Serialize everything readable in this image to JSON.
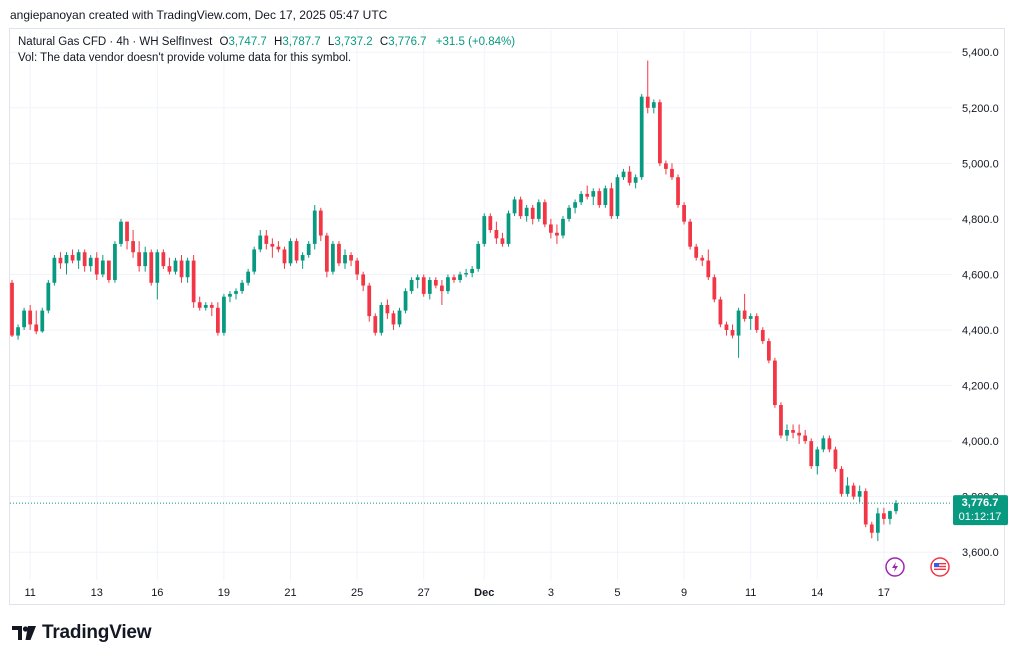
{
  "attribution": "angiepanoyan created with TradingView.com, Dec 17, 2025 05:47 UTC",
  "symbol": {
    "name": "Natural Gas CFD · 4h · WH SelfInvest",
    "open_label": "O",
    "open": "3,747.7",
    "high_label": "H",
    "high": "3,787.7",
    "low_label": "L",
    "low": "3,737.2",
    "close_label": "C",
    "close": "3,776.7",
    "change": "+31.5 (+0.84%)",
    "volume_note": "Vol: The data vendor doesn't provide volume data for this symbol."
  },
  "price_badge": {
    "price": "3,776.7",
    "countdown": "01:12:17"
  },
  "brand": {
    "logo_mark": "17",
    "name": "TradingView"
  },
  "colors": {
    "up": "#089981",
    "down": "#f23645",
    "grid": "#f0f3fa",
    "text": "#131722",
    "event_purple": "#9c27b0",
    "flag_red": "#f23645"
  },
  "chart_data": {
    "type": "candlestick",
    "title": "Natural Gas CFD · 4h · WH SelfInvest",
    "ylim": [
      3500,
      5480
    ],
    "y_ticks": [
      3600,
      3800,
      4000,
      4200,
      4400,
      4600,
      4800,
      5000,
      5200,
      5400
    ],
    "y_tick_labels": [
      "3,600.0",
      "3,800.0",
      "4,000.0",
      "4,200.0",
      "4,400.0",
      "4,600.0",
      "4,800.0",
      "5,000.0",
      "5,200.0",
      "5,400.0"
    ],
    "x_tick_labels": [
      "11",
      "13",
      "16",
      "19",
      "21",
      "25",
      "27",
      "Dec",
      "3",
      "5",
      "9",
      "11",
      "14",
      "17"
    ],
    "x_tick_index": [
      3,
      14,
      24,
      35,
      46,
      57,
      68,
      78,
      89,
      100,
      111,
      122,
      133,
      144
    ],
    "current_price": 3776.7,
    "candles": [
      [
        4570,
        4580,
        4375,
        4380
      ],
      [
        4380,
        4420,
        4365,
        4410
      ],
      [
        4410,
        4480,
        4400,
        4470
      ],
      [
        4470,
        4490,
        4400,
        4420
      ],
      [
        4420,
        4470,
        4385,
        4395
      ],
      [
        4395,
        4480,
        4390,
        4470
      ],
      [
        4470,
        4580,
        4460,
        4570
      ],
      [
        4570,
        4670,
        4560,
        4660
      ],
      [
        4660,
        4680,
        4620,
        4640
      ],
      [
        4640,
        4680,
        4600,
        4670
      ],
      [
        4670,
        4690,
        4640,
        4650
      ],
      [
        4650,
        4690,
        4620,
        4680
      ],
      [
        4680,
        4690,
        4610,
        4630
      ],
      [
        4630,
        4670,
        4610,
        4660
      ],
      [
        4660,
        4680,
        4580,
        4600
      ],
      [
        4600,
        4670,
        4590,
        4650
      ],
      [
        4650,
        4650,
        4570,
        4580
      ],
      [
        4580,
        4720,
        4570,
        4710
      ],
      [
        4710,
        4800,
        4700,
        4790
      ],
      [
        4790,
        4790,
        4690,
        4720
      ],
      [
        4720,
        4760,
        4660,
        4680
      ],
      [
        4680,
        4720,
        4610,
        4630
      ],
      [
        4630,
        4700,
        4610,
        4680
      ],
      [
        4680,
        4690,
        4560,
        4570
      ],
      [
        4570,
        4690,
        4510,
        4680
      ],
      [
        4680,
        4690,
        4620,
        4630
      ],
      [
        4630,
        4660,
        4600,
        4610
      ],
      [
        4610,
        4660,
        4600,
        4650
      ],
      [
        4650,
        4670,
        4570,
        4590
      ],
      [
        4590,
        4660,
        4570,
        4650
      ],
      [
        4650,
        4670,
        4480,
        4500
      ],
      [
        4500,
        4520,
        4470,
        4480
      ],
      [
        4480,
        4500,
        4470,
        4490
      ],
      [
        4490,
        4500,
        4450,
        4480
      ],
      [
        4480,
        4500,
        4380,
        4390
      ],
      [
        4390,
        4530,
        4380,
        4520
      ],
      [
        4520,
        4540,
        4500,
        4530
      ],
      [
        4530,
        4550,
        4510,
        4540
      ],
      [
        4540,
        4580,
        4530,
        4570
      ],
      [
        4570,
        4620,
        4560,
        4610
      ],
      [
        4610,
        4700,
        4600,
        4690
      ],
      [
        4690,
        4760,
        4680,
        4740
      ],
      [
        4740,
        4760,
        4690,
        4710
      ],
      [
        4710,
        4730,
        4660,
        4700
      ],
      [
        4700,
        4720,
        4680,
        4690
      ],
      [
        4690,
        4700,
        4620,
        4640
      ],
      [
        4640,
        4730,
        4630,
        4720
      ],
      [
        4720,
        4730,
        4640,
        4650
      ],
      [
        4650,
        4680,
        4620,
        4670
      ],
      [
        4670,
        4720,
        4660,
        4710
      ],
      [
        4710,
        4850,
        4690,
        4830
      ],
      [
        4830,
        4840,
        4720,
        4740
      ],
      [
        4740,
        4750,
        4590,
        4610
      ],
      [
        4610,
        4720,
        4600,
        4710
      ],
      [
        4710,
        4720,
        4630,
        4640
      ],
      [
        4640,
        4690,
        4620,
        4670
      ],
      [
        4670,
        4680,
        4630,
        4650
      ],
      [
        4650,
        4660,
        4580,
        4600
      ],
      [
        4600,
        4610,
        4540,
        4560
      ],
      [
        4560,
        4570,
        4430,
        4450
      ],
      [
        4450,
        4460,
        4380,
        4390
      ],
      [
        4390,
        4500,
        4380,
        4490
      ],
      [
        4490,
        4510,
        4440,
        4460
      ],
      [
        4460,
        4470,
        4400,
        4420
      ],
      [
        4420,
        4480,
        4410,
        4470
      ],
      [
        4470,
        4550,
        4460,
        4540
      ],
      [
        4540,
        4590,
        4530,
        4580
      ],
      [
        4580,
        4600,
        4550,
        4590
      ],
      [
        4590,
        4600,
        4520,
        4530
      ],
      [
        4530,
        4590,
        4510,
        4580
      ],
      [
        4580,
        4590,
        4550,
        4560
      ],
      [
        4560,
        4580,
        4490,
        4540
      ],
      [
        4540,
        4600,
        4530,
        4590
      ],
      [
        4590,
        4600,
        4570,
        4580
      ],
      [
        4580,
        4610,
        4570,
        4600
      ],
      [
        4600,
        4620,
        4590,
        4605
      ],
      [
        4605,
        4630,
        4590,
        4620
      ],
      [
        4620,
        4720,
        4610,
        4710
      ],
      [
        4710,
        4820,
        4700,
        4810
      ],
      [
        4810,
        4820,
        4750,
        4760
      ],
      [
        4760,
        4790,
        4710,
        4730
      ],
      [
        4730,
        4750,
        4700,
        4710
      ],
      [
        4710,
        4830,
        4700,
        4820
      ],
      [
        4820,
        4880,
        4810,
        4870
      ],
      [
        4870,
        4880,
        4800,
        4810
      ],
      [
        4810,
        4850,
        4790,
        4840
      ],
      [
        4840,
        4850,
        4780,
        4800
      ],
      [
        4800,
        4870,
        4790,
        4860
      ],
      [
        4860,
        4870,
        4770,
        4780
      ],
      [
        4780,
        4800,
        4730,
        4750
      ],
      [
        4750,
        4780,
        4710,
        4740
      ],
      [
        4740,
        4810,
        4730,
        4800
      ],
      [
        4800,
        4850,
        4790,
        4840
      ],
      [
        4840,
        4870,
        4820,
        4860
      ],
      [
        4860,
        4900,
        4850,
        4890
      ],
      [
        4890,
        4920,
        4870,
        4880
      ],
      [
        4880,
        4910,
        4850,
        4900
      ],
      [
        4900,
        4910,
        4840,
        4850
      ],
      [
        4850,
        4920,
        4840,
        4910
      ],
      [
        4910,
        4930,
        4800,
        4810
      ],
      [
        4810,
        4960,
        4800,
        4950
      ],
      [
        4950,
        4980,
        4940,
        4970
      ],
      [
        4970,
        4990,
        4920,
        4930
      ],
      [
        4930,
        4960,
        4910,
        4950
      ],
      [
        4950,
        5250,
        4940,
        5240
      ],
      [
        5240,
        5370,
        5180,
        5200
      ],
      [
        5200,
        5230,
        5180,
        5220
      ],
      [
        5220,
        5230,
        4990,
        5000
      ],
      [
        5000,
        5010,
        4960,
        4980
      ],
      [
        4980,
        5000,
        4940,
        4950
      ],
      [
        4950,
        4960,
        4840,
        4850
      ],
      [
        4850,
        4860,
        4780,
        4790
      ],
      [
        4790,
        4800,
        4690,
        4700
      ],
      [
        4700,
        4710,
        4650,
        4660
      ],
      [
        4660,
        4670,
        4630,
        4650
      ],
      [
        4650,
        4690,
        4580,
        4590
      ],
      [
        4590,
        4600,
        4500,
        4510
      ],
      [
        4510,
        4520,
        4410,
        4420
      ],
      [
        4420,
        4430,
        4380,
        4400
      ],
      [
        4400,
        4420,
        4370,
        4380
      ],
      [
        4380,
        4480,
        4300,
        4470
      ],
      [
        4470,
        4530,
        4430,
        4440
      ],
      [
        4440,
        4460,
        4400,
        4450
      ],
      [
        4450,
        4460,
        4390,
        4400
      ],
      [
        4400,
        4410,
        4350,
        4360
      ],
      [
        4360,
        4370,
        4280,
        4290
      ],
      [
        4290,
        4300,
        4120,
        4130
      ],
      [
        4130,
        4140,
        4010,
        4020
      ],
      [
        4020,
        4060,
        4000,
        4040
      ],
      [
        4040,
        4060,
        4010,
        4030
      ],
      [
        4030,
        4060,
        3990,
        4020
      ],
      [
        4020,
        4040,
        3990,
        4000
      ],
      [
        4000,
        4010,
        3900,
        3910
      ],
      [
        3910,
        3980,
        3880,
        3970
      ],
      [
        3970,
        4020,
        3960,
        4010
      ],
      [
        4010,
        4020,
        3960,
        3970
      ],
      [
        3970,
        3980,
        3890,
        3900
      ],
      [
        3900,
        3910,
        3800,
        3810
      ],
      [
        3810,
        3870,
        3800,
        3840
      ],
      [
        3840,
        3850,
        3790,
        3800
      ],
      [
        3800,
        3840,
        3780,
        3820
      ],
      [
        3820,
        3830,
        3690,
        3700
      ],
      [
        3700,
        3710,
        3650,
        3670
      ],
      [
        3670,
        3760,
        3640,
        3740
      ],
      [
        3740,
        3760,
        3700,
        3720
      ],
      [
        3720,
        3750,
        3700,
        3748
      ],
      [
        3747.7,
        3787.7,
        3737.2,
        3776.7
      ]
    ]
  }
}
